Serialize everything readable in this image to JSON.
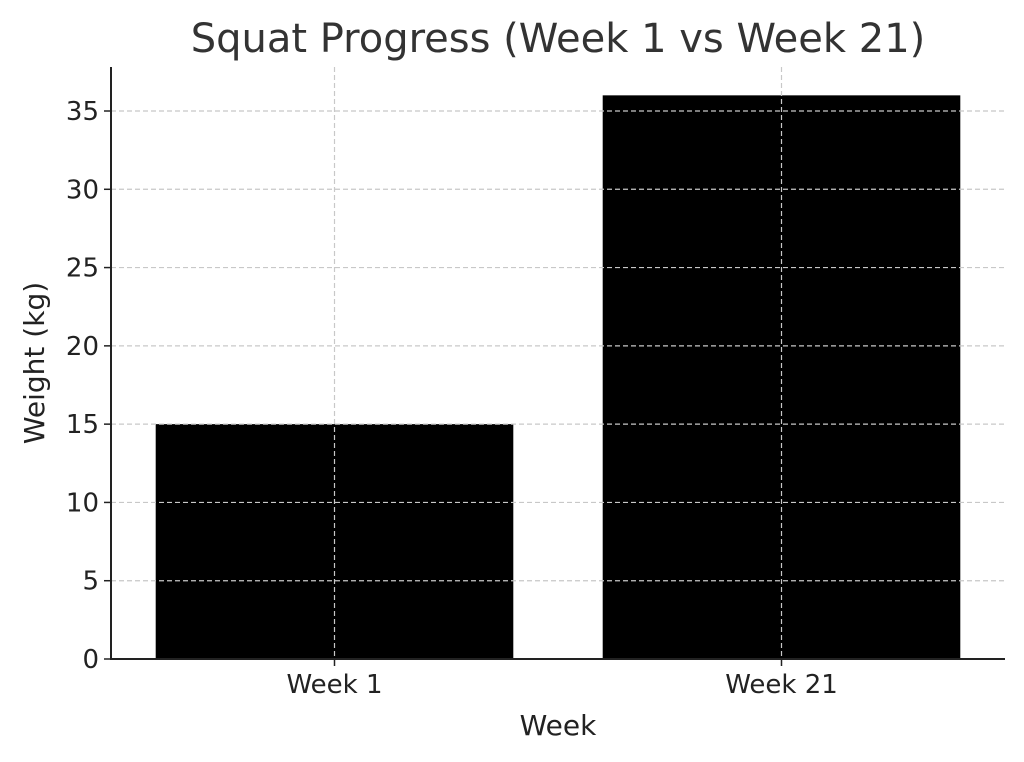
{
  "chart_data": {
    "type": "bar",
    "title": "Squat Progress (Week 1 vs Week 21)",
    "xlabel": "Week",
    "ylabel": "Weight (kg)",
    "categories": [
      "Week 1",
      "Week 21"
    ],
    "values": [
      15,
      36
    ],
    "ylim": [
      0,
      38
    ],
    "yticks": [
      0,
      5,
      10,
      15,
      20,
      25,
      30,
      35
    ],
    "grid": true,
    "bar_color": "#000000",
    "grid_color": "#c8c8c8"
  }
}
